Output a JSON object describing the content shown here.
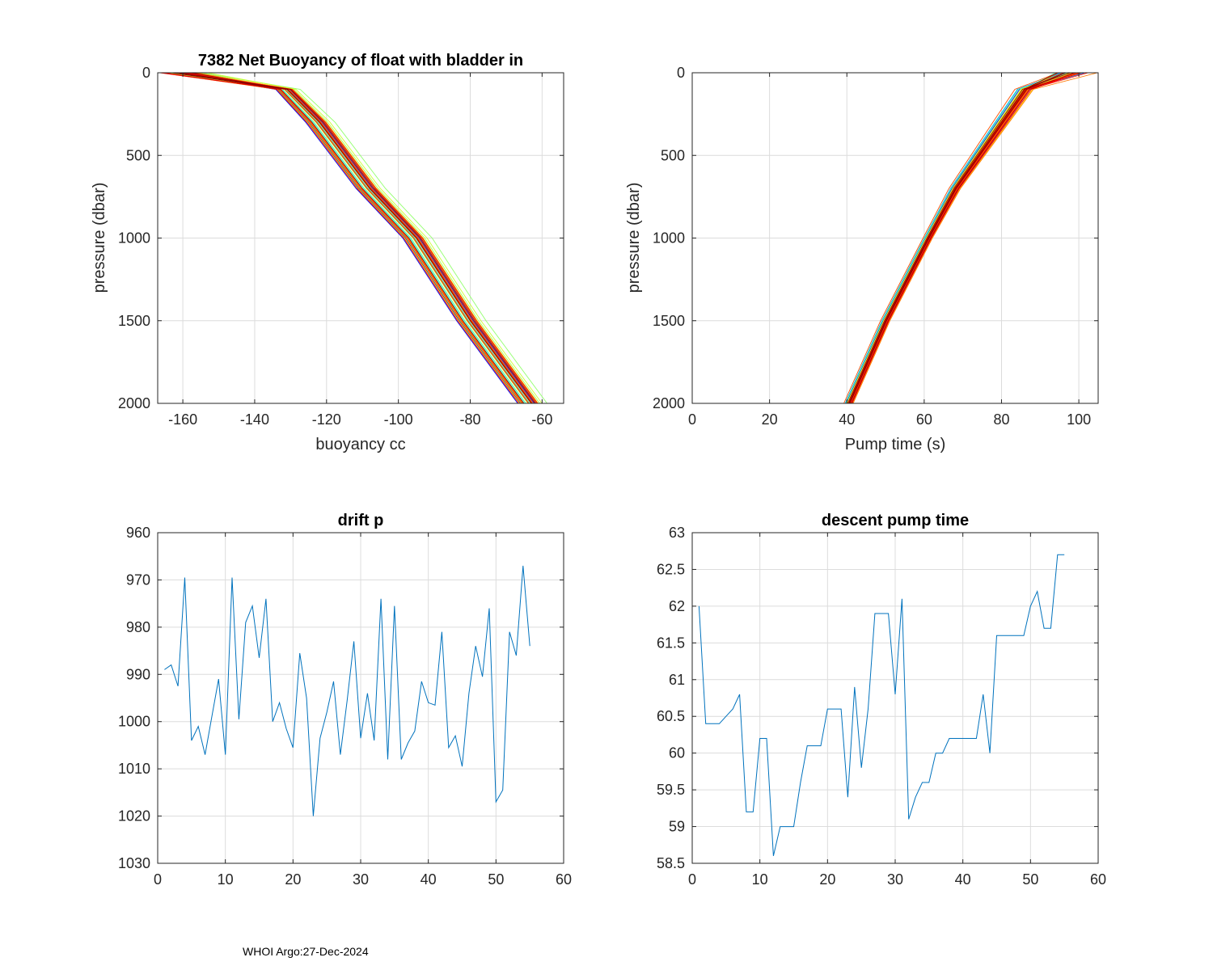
{
  "footer": "WHOI Argo:27-Dec-2024",
  "chart_data": [
    {
      "id": "buoyancy",
      "type": "line",
      "title": "7382 Net Buoyancy of float with bladder in",
      "xlabel": "buoyancy cc",
      "ylabel": "pressure (dbar)",
      "xlim": [
        -167,
        -54
      ],
      "ylim": [
        0,
        2000
      ],
      "y_reversed": true,
      "xticks": [
        -160,
        -140,
        -120,
        -100,
        -80,
        -60
      ],
      "yticks": [
        0,
        500,
        1000,
        1500,
        2000
      ],
      "xtick_labels": [
        "-160",
        "-140",
        "-120",
        "-100",
        "-80",
        "-60"
      ],
      "ytick_labels": [
        "0",
        "500",
        "1000",
        "1500",
        "2000"
      ],
      "profile_count": 55,
      "profile_pressures": [
        0,
        100,
        300,
        700,
        1000,
        1500,
        2000
      ],
      "mean_profile": [
        -160,
        -131,
        -122,
        -108,
        -95,
        -80,
        -63
      ],
      "profile_spread": [
        3.0,
        2.5,
        3.0,
        3.0,
        3.0,
        3.0,
        3.0
      ],
      "colormap": "jet"
    },
    {
      "id": "pump",
      "type": "line",
      "title": "",
      "xlabel": "Pump time (s)",
      "ylabel": "pressure (dbar)",
      "xlim": [
        0,
        105
      ],
      "ylim": [
        0,
        2000
      ],
      "y_reversed": true,
      "xticks": [
        0,
        20,
        40,
        60,
        80,
        100
      ],
      "yticks": [
        0,
        500,
        1000,
        1500,
        2000
      ],
      "xtick_labels": [
        "0",
        "20",
        "40",
        "60",
        "80",
        "100"
      ],
      "ytick_labels": [
        "0",
        "500",
        "1000",
        "1500",
        "2000"
      ],
      "profile_count": 55,
      "profile_pressures": [
        0,
        100,
        300,
        700,
        1000,
        1500,
        2000
      ],
      "mean_profile": [
        98,
        86,
        80,
        68,
        61,
        50,
        40.5
      ],
      "profile_spread": [
        2.5,
        1.6,
        1.4,
        1.0,
        0.8,
        0.8,
        0.8
      ],
      "colormap": "jet"
    },
    {
      "id": "drift",
      "type": "line",
      "title": "drift p",
      "xlabel": "",
      "ylabel": "",
      "xlim": [
        0,
        60
      ],
      "ylim": [
        960,
        1030
      ],
      "y_reversed": true,
      "xticks": [
        0,
        10,
        20,
        30,
        40,
        50,
        60
      ],
      "yticks": [
        960,
        970,
        980,
        990,
        1000,
        1010,
        1020,
        1030
      ],
      "xtick_labels": [
        "0",
        "10",
        "20",
        "30",
        "40",
        "50",
        "60"
      ],
      "ytick_labels": [
        "960",
        "970",
        "980",
        "990",
        "1000",
        "1010",
        "1020",
        "1030"
      ],
      "series": [
        {
          "name": "drift p",
          "color": "#0072BD",
          "x": [
            1,
            2,
            3,
            4,
            5,
            6,
            7,
            8,
            9,
            10,
            11,
            12,
            13,
            14,
            15,
            16,
            17,
            18,
            19,
            20,
            21,
            22,
            23,
            24,
            25,
            26,
            27,
            28,
            29,
            30,
            31,
            32,
            33,
            34,
            35,
            36,
            37,
            38,
            39,
            40,
            41,
            42,
            43,
            44,
            45,
            46,
            47,
            48,
            49,
            50,
            51,
            52,
            53,
            54,
            55
          ],
          "values": [
            989,
            988,
            992.5,
            969.5,
            1004,
            1001,
            1007,
            999,
            991,
            1007,
            969.5,
            999.5,
            979,
            975.5,
            986.5,
            974,
            1000,
            996,
            1001.5,
            1005.5,
            985.5,
            995,
            1020,
            1003.5,
            998,
            991.5,
            1007,
            995.5,
            983,
            1003.5,
            994,
            1004,
            974,
            1008,
            975.5,
            1008,
            1004.5,
            1002,
            991.5,
            996,
            996.5,
            981,
            1005.5,
            1003,
            1009.5,
            994,
            984,
            990.5,
            976,
            1017,
            1014.5,
            981,
            986,
            967,
            984
          ]
        }
      ]
    },
    {
      "id": "descent",
      "type": "line",
      "title": "descent pump time",
      "xlabel": "",
      "ylabel": "",
      "xlim": [
        0,
        60
      ],
      "ylim": [
        58.5,
        63
      ],
      "y_reversed": false,
      "xticks": [
        0,
        10,
        20,
        30,
        40,
        50,
        60
      ],
      "yticks": [
        58.5,
        59,
        59.5,
        60,
        60.5,
        61,
        61.5,
        62,
        62.5,
        63
      ],
      "xtick_labels": [
        "0",
        "10",
        "20",
        "30",
        "40",
        "50",
        "60"
      ],
      "ytick_labels": [
        "58.5",
        "59",
        "59.5",
        "60",
        "60.5",
        "61",
        "61.5",
        "62",
        "62.5",
        "63"
      ],
      "series": [
        {
          "name": "descent pump time",
          "color": "#0072BD",
          "x": [
            1,
            2,
            3,
            4,
            5,
            6,
            7,
            8,
            9,
            10,
            11,
            12,
            13,
            14,
            15,
            16,
            17,
            18,
            19,
            20,
            21,
            22,
            23,
            24,
            25,
            26,
            27,
            28,
            29,
            30,
            31,
            32,
            33,
            34,
            35,
            36,
            37,
            38,
            39,
            40,
            41,
            42,
            43,
            44,
            45,
            46,
            47,
            48,
            49,
            50,
            51,
            52,
            53,
            54,
            55
          ],
          "values": [
            62,
            60.4,
            60.4,
            60.4,
            60.5,
            60.6,
            60.8,
            59.2,
            59.2,
            60.2,
            60.2,
            58.6,
            59,
            59,
            59,
            59.6,
            60.1,
            60.1,
            60.1,
            60.6,
            60.6,
            60.6,
            59.4,
            60.9,
            59.8,
            60.6,
            61.9,
            61.9,
            61.9,
            60.8,
            62.1,
            59.1,
            59.4,
            59.6,
            59.6,
            60,
            60,
            60.2,
            60.2,
            60.2,
            60.2,
            60.2,
            60.8,
            60,
            61.6,
            61.6,
            61.6,
            61.6,
            61.6,
            62,
            62.2,
            61.7,
            61.7,
            62.7,
            62.7
          ]
        }
      ]
    }
  ]
}
